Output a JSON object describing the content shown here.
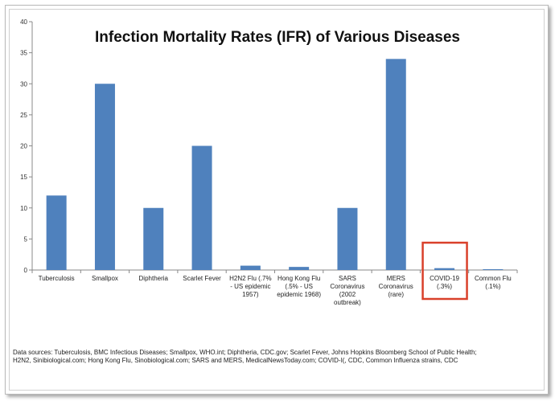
{
  "chart_data": {
    "type": "bar",
    "title": "Infection Mortality Rates (IFR) of Various Diseases",
    "xlabel": "",
    "ylabel": "",
    "ylim": [
      0,
      40
    ],
    "yticks": [
      "0",
      "5",
      "10",
      "15",
      "20",
      "25",
      "30",
      "35",
      "40"
    ],
    "grid": false,
    "legend": "none",
    "bar_color": "#4f81bd",
    "highlight_color": "#d9402a",
    "highlight_category_index": 8,
    "categories": [
      [
        "Tuberculosis"
      ],
      [
        "Smallpox"
      ],
      [
        "Diphtheria"
      ],
      [
        "Scarlet Fever"
      ],
      [
        "H2N2 Flu (.7%",
        "- US epidemic",
        "1957)"
      ],
      [
        "Hong Kong Flu",
        "(.5% - US",
        "epidemic 1968)"
      ],
      [
        "SARS",
        "Coronavirus",
        "(2002",
        "outbreak)"
      ],
      [
        "MERS",
        "Coronavirus",
        "(rare)"
      ],
      [
        "COVID-19",
        "(.3%)"
      ],
      [
        "Common Flu",
        "(.1%)"
      ]
    ],
    "values": [
      12,
      30,
      10,
      20,
      0.7,
      0.5,
      10,
      34,
      0.3,
      0.1
    ]
  },
  "source_text": [
    "Data sources: Tuberculosis, BMC Infectious Diseases; Smallpox, WHO.int; Diphtheria, CDC.gov; Scarlet Fever, Johns Hopkins Bloomberg School of Public Health;",
    "H2N2, Sinibiological.com; Hong Kong Flu, Sinobiological.com; SARS and MERS, MedicalNewsToday.com; COVID-I(, CDC, Common Influenza strains, CDC"
  ]
}
